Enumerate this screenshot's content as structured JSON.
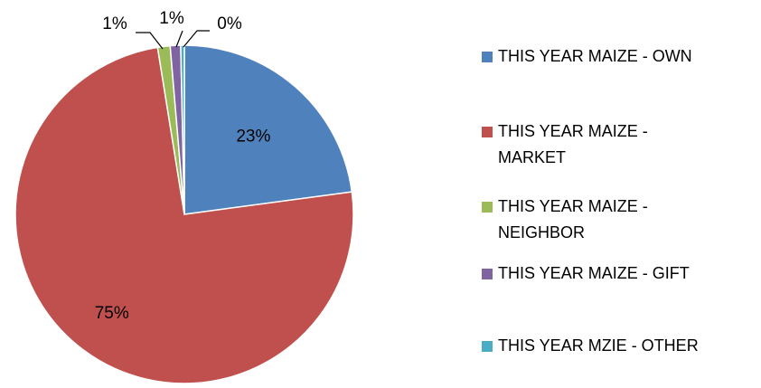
{
  "chart_data": {
    "type": "pie",
    "title": "",
    "series": [
      {
        "name": "THIS YEAR MAIZE - OWN",
        "value": 23,
        "label": "23%",
        "color": "#4F81BD"
      },
      {
        "name": "THIS YEAR MAIZE -\nMARKET",
        "value": 75,
        "label": "75%",
        "color": "#C0504D"
      },
      {
        "name": "THIS YEAR MAIZE -\nNEIGHBOR",
        "value": 1.2,
        "label": "1%",
        "color": "#9BBB59"
      },
      {
        "name": "THIS YEAR MAIZE - GIFT",
        "value": 1.0,
        "label": "1%",
        "color": "#8064A2"
      },
      {
        "name": "THIS YEAR MZIE - OTHER",
        "value": 0.35,
        "label": "0%",
        "color": "#4BACC6"
      }
    ],
    "legend_position": "right"
  }
}
